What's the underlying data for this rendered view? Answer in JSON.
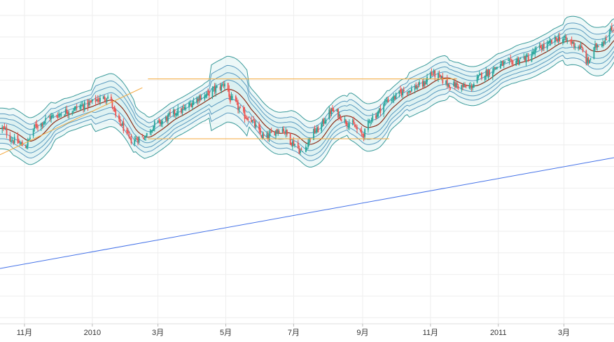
{
  "chart_data": {
    "type": "candlestick",
    "title": "",
    "xlabel": "",
    "ylabel": "",
    "x_tick_labels": [
      "11月",
      "2010",
      "3月",
      "5月",
      "7月",
      "9月",
      "11月",
      "2011",
      "3月"
    ],
    "x_tick_dates": [
      "2009-11-01",
      "2010-01-01",
      "2010-03-01",
      "2010-05-01",
      "2010-07-01",
      "2010-09-01",
      "2010-11-01",
      "2011-01-01",
      "2011-03-01"
    ],
    "x_range": [
      "2009-10-10",
      "2011-04-15"
    ],
    "y_range": [
      0,
      100
    ],
    "y_axis_labels_shown": false,
    "grid": true,
    "legend": "none",
    "indicators": [
      "bollinger-bands (4 band pairs)",
      "moving-average"
    ],
    "close_series": [
      [
        "2009-10-12",
        60
      ],
      [
        "2009-10-22",
        56
      ],
      [
        "2009-11-01",
        54
      ],
      [
        "2009-11-12",
        61
      ],
      [
        "2009-11-25",
        64
      ],
      [
        "2009-12-10",
        66
      ],
      [
        "2009-12-25",
        68
      ],
      [
        "2010-01-08",
        70
      ],
      [
        "2010-01-15",
        71
      ],
      [
        "2010-01-25",
        62
      ],
      [
        "2010-02-05",
        56
      ],
      [
        "2010-02-15",
        57
      ],
      [
        "2010-03-01",
        62
      ],
      [
        "2010-03-20",
        66
      ],
      [
        "2010-04-10",
        71
      ],
      [
        "2010-04-25",
        74
      ],
      [
        "2010-05-01",
        76
      ],
      [
        "2010-05-05",
        70
      ],
      [
        "2010-05-20",
        64
      ],
      [
        "2010-06-05",
        57
      ],
      [
        "2010-06-20",
        60
      ],
      [
        "2010-07-01",
        55
      ],
      [
        "2010-07-08",
        52
      ],
      [
        "2010-07-20",
        59
      ],
      [
        "2010-08-05",
        66
      ],
      [
        "2010-08-20",
        62
      ],
      [
        "2010-09-01",
        58
      ],
      [
        "2010-09-10",
        64
      ],
      [
        "2010-09-25",
        70
      ],
      [
        "2010-10-10",
        73
      ],
      [
        "2010-10-25",
        75
      ],
      [
        "2010-11-01",
        79
      ],
      [
        "2010-11-20",
        75
      ],
      [
        "2010-12-05",
        74
      ],
      [
        "2010-12-20",
        79
      ],
      [
        "2011-01-05",
        82
      ],
      [
        "2011-01-25",
        84
      ],
      [
        "2011-02-10",
        88
      ],
      [
        "2011-02-25",
        91
      ],
      [
        "2011-03-05",
        90
      ],
      [
        "2011-03-15",
        88
      ],
      [
        "2011-03-22",
        83
      ],
      [
        "2011-04-01",
        89
      ],
      [
        "2011-04-15",
        94
      ]
    ],
    "band_half_widths": [
      5,
      9,
      13,
      18
    ],
    "drawings": [
      {
        "type": "trend-line",
        "color": "#4472e8",
        "from": [
          "2009-10-10",
          12
        ],
        "to": [
          "2011-04-15",
          50
        ]
      },
      {
        "type": "trend-line",
        "color": "#f5a83c",
        "from": [
          "2009-10-10",
          51
        ],
        "to": [
          "2010-02-15",
          74
        ]
      },
      {
        "type": "channel",
        "color": "#f5a83c",
        "top": [
          [
            "2010-02-20",
            77
          ],
          [
            "2010-11-25",
            77
          ]
        ],
        "bottom": [
          [
            "2010-02-20",
            56.5
          ],
          [
            "2010-09-25",
            56.5
          ]
        ]
      }
    ],
    "colors": {
      "up": "#26a69a",
      "down": "#ef5350",
      "band_outer": "#3a9a9a",
      "band_inner": "#5a9abf",
      "band_fill": "#d8f0f0",
      "moving_average": "#8b2e1a",
      "grid": "#eeeeee"
    }
  }
}
